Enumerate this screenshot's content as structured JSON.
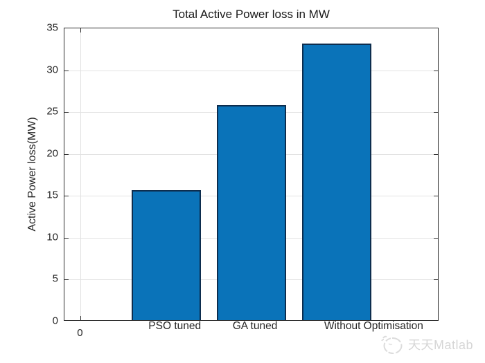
{
  "figure": {
    "watermark_text": "天天Matlab"
  },
  "chart_data": {
    "type": "bar",
    "title": "Total Active Power loss in MW",
    "categories": [
      "PSO tuned",
      "GA tuned",
      "Without Optimisation"
    ],
    "values": [
      15.5,
      25.7,
      33.0
    ],
    "bar_x": [
      1,
      2,
      3
    ],
    "category_label_x": [
      1.11,
      2.05,
      3.44
    ],
    "bar_width": 0.81,
    "xlabel": "",
    "ylabel": "Active Power loss(MW)",
    "ylim": [
      0,
      35
    ],
    "xlim": [
      -0.19,
      4.2
    ],
    "yticks": [
      0,
      5,
      10,
      15,
      20,
      25,
      30,
      35
    ],
    "xticks": [
      0
    ],
    "xtick_labels": [
      "0"
    ],
    "grid": true,
    "legend": "none",
    "bar_color": "#0a73b9",
    "bar_edge_color": "#0d2d4e",
    "axis_color": "#262626",
    "grid_color": "#e2e2e2"
  }
}
